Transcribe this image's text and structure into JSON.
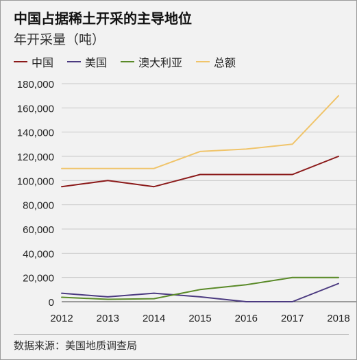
{
  "title": "中国占据稀土开采的主导地位",
  "subtitle": "年开采量（吨）",
  "source": "数据来源：美国地质调查局",
  "chart_data": {
    "type": "line",
    "title": "中国占据稀土开采的主导地位",
    "subtitle": "年开采量（吨）",
    "x": [
      "2012",
      "2013",
      "2014",
      "2015",
      "2016",
      "2017",
      "2018"
    ],
    "ylim": [
      0,
      180000
    ],
    "yticks": [
      0,
      20000,
      40000,
      60000,
      80000,
      100000,
      120000,
      140000,
      160000,
      180000
    ],
    "ytick_labels": [
      "0",
      "20,000",
      "40,000",
      "60,000",
      "80,000",
      "100,000",
      "120,000",
      "140,000",
      "160,000",
      "180,000"
    ],
    "grid": true,
    "legend_position": "top-left",
    "series": [
      {
        "name": "中国",
        "color": "#8b1a1a",
        "values": [
          95000,
          100000,
          95000,
          105000,
          105000,
          105000,
          120000
        ]
      },
      {
        "name": "美国",
        "color": "#4b3a80",
        "values": [
          7000,
          4000,
          7000,
          4000,
          0,
          0,
          15000
        ]
      },
      {
        "name": "澳大利亚",
        "color": "#5a8a28",
        "values": [
          3700,
          2000,
          2500,
          10000,
          14000,
          20000,
          20000
        ]
      },
      {
        "name": "总额",
        "color": "#f0c46a",
        "values": [
          110000,
          110000,
          110000,
          124000,
          126000,
          130000,
          170000
        ]
      }
    ]
  }
}
